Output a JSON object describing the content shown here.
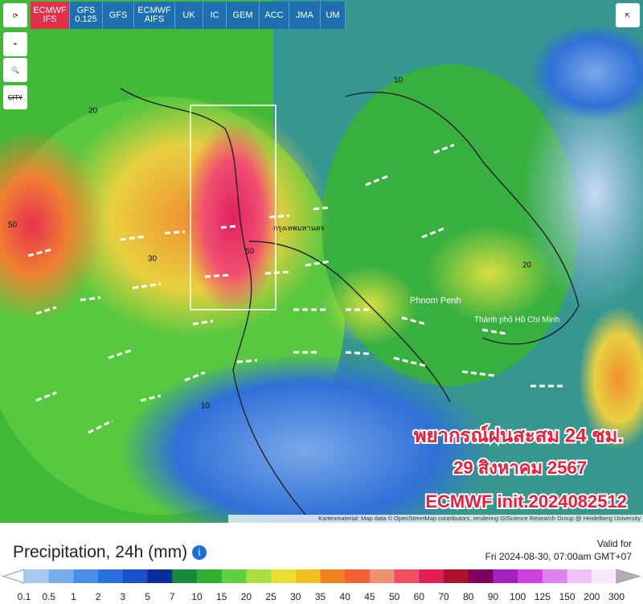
{
  "toolbar": {
    "models": [
      "ECMWF IFS",
      "GFS 0.125",
      "GFS",
      "ECMWF AIFS",
      "UK",
      "IC",
      "GEM",
      "ACC",
      "JMA",
      "UM"
    ],
    "city": "CITY"
  },
  "map": {
    "places": [
      "กรุงเทพมหานคร",
      "Phnom Penh",
      "Thành phố Hồ Chí Minh"
    ],
    "contours": [
      "10",
      "20",
      "30",
      "50"
    ],
    "overlay": [
      "พยากรณ์ฝนสะสม 24 ชม.",
      "29 สิงหาคม 2567",
      "ECMWF init.2024082512"
    ],
    "attribution": "Kartenmaterial: Map data © OpenStreetMap contributors, rendering GIScience Research Group @ Heidelberg University"
  },
  "panel": {
    "title": "Precipitation, 24h (mm)",
    "valid_label": "Valid for",
    "valid_time": "Fri 2024-08-30, 07:00am GMT+07"
  },
  "legend": {
    "ticks": [
      "0.1",
      "0.5",
      "1",
      "2",
      "3",
      "5",
      "7",
      "10",
      "15",
      "20",
      "25",
      "30",
      "35",
      "40",
      "45",
      "50",
      "60",
      "70",
      "80",
      "90",
      "100",
      "125",
      "150",
      "200",
      "300"
    ],
    "colors": [
      "#a8c8f0",
      "#78aef0",
      "#4a90e8",
      "#2a70e0",
      "#1a50c8",
      "#0a2e9a",
      "#1a8a3a",
      "#30b030",
      "#60d040",
      "#a8e040",
      "#e8e030",
      "#f0c020",
      "#f08020",
      "#f06030",
      "#f09070",
      "#f05060",
      "#e02050",
      "#b01030",
      "#800060",
      "#a020c0",
      "#d040e0",
      "#e080f0",
      "#f0c0f8",
      "#f8e8ff"
    ]
  }
}
